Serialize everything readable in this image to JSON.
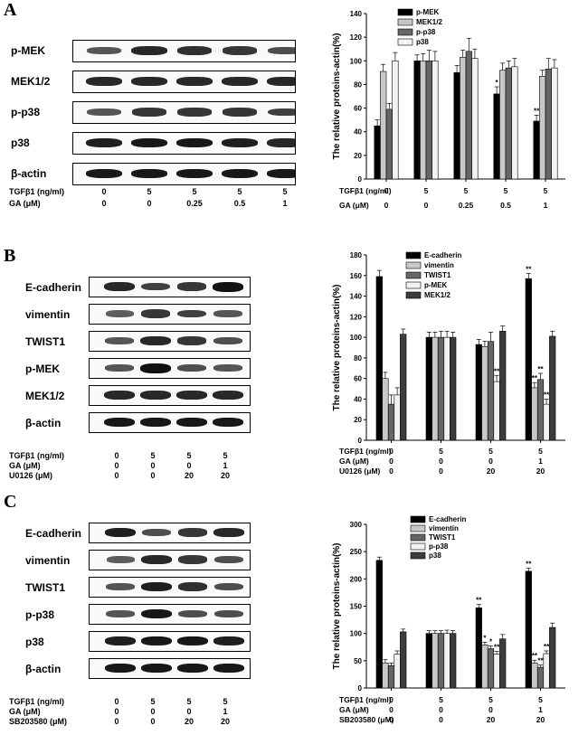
{
  "panels": [
    {
      "letter": "A",
      "blot": {
        "bands": [
          "p-MEK",
          "MEK1/2",
          "p-p38",
          "p38",
          "β-actin"
        ],
        "intensity": [
          [
            0.55,
            0.85,
            0.8,
            0.75,
            0.6
          ],
          [
            0.85,
            0.85,
            0.85,
            0.85,
            0.85
          ],
          [
            0.55,
            0.75,
            0.75,
            0.75,
            0.7
          ],
          [
            0.9,
            0.95,
            0.95,
            0.9,
            0.85
          ],
          [
            0.95,
            0.95,
            0.95,
            0.95,
            0.95
          ]
        ],
        "conditions": [
          {
            "label": "TGFβ1 (ng/ml)",
            "values": [
              "0",
              "5",
              "5",
              "5",
              "5"
            ]
          },
          {
            "label": "GA (μM)",
            "values": [
              "0",
              "0",
              "0.25",
              "0.5",
              "1"
            ]
          }
        ]
      },
      "chart_data": {
        "type": "bar",
        "ylabel": "The relative proteins-actin(%)",
        "ylim": [
          0,
          140
        ],
        "yticks": [
          0,
          20,
          40,
          60,
          80,
          100,
          120,
          140
        ],
        "series": [
          {
            "name": "p-MEK",
            "color": "#000000",
            "values": [
              45,
              100,
              90,
              72,
              49
            ],
            "errors": [
              5,
              5,
              6,
              6,
              5
            ],
            "sig": [
              "",
              "",
              "",
              "*",
              "**"
            ]
          },
          {
            "name": "MEK1/2",
            "color": "#c8c8c8",
            "values": [
              91,
              100,
              103,
              92,
              87
            ],
            "errors": [
              6,
              6,
              6,
              6,
              5
            ],
            "sig": [
              "",
              "",
              "",
              "",
              ""
            ]
          },
          {
            "name": "p-p38",
            "color": "#666666",
            "values": [
              59,
              100,
              108,
              94,
              93
            ],
            "errors": [
              5,
              9,
              11,
              6,
              9
            ],
            "sig": [
              "",
              "",
              "",
              "",
              ""
            ]
          },
          {
            "name": "p38",
            "color": "#f2f2f2",
            "values": [
              100,
              100,
              102,
              95,
              94
            ],
            "errors": [
              7,
              8,
              8,
              7,
              7
            ],
            "sig": [
              "",
              "",
              "",
              "",
              ""
            ]
          }
        ],
        "conditions": [
          {
            "label": "TGFβ1 (ng/ml)",
            "values": [
              "0",
              "5",
              "5",
              "5",
              "5"
            ]
          },
          {
            "label": "GA (μM)",
            "values": [
              "0",
              "0",
              "0.25",
              "0.5",
              "1"
            ]
          }
        ]
      }
    },
    {
      "letter": "B",
      "blot": {
        "bands": [
          "E-cadherin",
          "vimentin",
          "TWIST1",
          "p-MEK",
          "MEK1/2",
          "β-actin"
        ],
        "intensity": [
          [
            0.85,
            0.7,
            0.75,
            1.0
          ],
          [
            0.5,
            0.75,
            0.7,
            0.55
          ],
          [
            0.55,
            0.85,
            0.75,
            0.6
          ],
          [
            0.55,
            1.0,
            0.6,
            0.55
          ],
          [
            0.85,
            0.85,
            0.85,
            0.85
          ],
          [
            0.95,
            0.95,
            0.95,
            0.95
          ]
        ],
        "conditions": [
          {
            "label": "TGFβ1 (ng/ml)",
            "values": [
              "0",
              "5",
              "5",
              "5"
            ]
          },
          {
            "label": "GA (μM)",
            "values": [
              "0",
              "0",
              "0",
              "1"
            ]
          },
          {
            "label": "U0126 (μM)",
            "values": [
              "0",
              "0",
              "20",
              "20"
            ]
          }
        ]
      },
      "chart_data": {
        "type": "bar",
        "ylabel": "The relative proteins-actin(%)",
        "ylim": [
          0,
          180
        ],
        "yticks": [
          0,
          20,
          40,
          60,
          80,
          100,
          120,
          140,
          160,
          180
        ],
        "series": [
          {
            "name": "E-cadherin",
            "color": "#000000",
            "values": [
              159,
              100,
              93,
              157
            ],
            "errors": [
              6,
              5,
              5,
              5
            ],
            "sig": [
              "",
              "",
              "",
              "**"
            ]
          },
          {
            "name": "vimentin",
            "color": "#c8c8c8",
            "values": [
              60,
              100,
              91,
              51
            ],
            "errors": [
              6,
              5,
              5,
              5
            ],
            "sig": [
              "",
              "",
              "",
              "**"
            ]
          },
          {
            "name": "TWIST1",
            "color": "#666666",
            "values": [
              35,
              100,
              96,
              59
            ],
            "errors": [
              9,
              6,
              9,
              6
            ],
            "sig": [
              "",
              "",
              "",
              "**"
            ]
          },
          {
            "name": "p-MEK",
            "color": "#f2f2f2",
            "values": [
              44,
              100,
              57,
              35
            ],
            "errors": [
              7,
              6,
              6,
              5
            ],
            "sig": [
              "",
              "",
              "**",
              "**"
            ]
          },
          {
            "name": "MEK1/2",
            "color": "#3c3c3c",
            "values": [
              103,
              100,
              106,
              101
            ],
            "errors": [
              5,
              5,
              5,
              5
            ],
            "sig": [
              "",
              "",
              "",
              ""
            ]
          }
        ],
        "conditions": [
          {
            "label": "TGFβ1 (ng/ml)",
            "values": [
              "0",
              "5",
              "5",
              "5"
            ]
          },
          {
            "label": "GA (μM)",
            "values": [
              "0",
              "0",
              "0",
              "1"
            ]
          },
          {
            "label": "U0126 (μM)",
            "values": [
              "0",
              "0",
              "20",
              "20"
            ]
          }
        ]
      }
    },
    {
      "letter": "C",
      "blot": {
        "bands": [
          "E-cadherin",
          "vimentin",
          "TWIST1",
          "p-p38",
          "p38",
          "β-actin"
        ],
        "intensity": [
          [
            0.9,
            0.6,
            0.75,
            0.85
          ],
          [
            0.5,
            0.85,
            0.75,
            0.6
          ],
          [
            0.55,
            0.9,
            0.8,
            0.6
          ],
          [
            0.55,
            0.95,
            0.6,
            0.6
          ],
          [
            0.9,
            0.95,
            0.95,
            0.9
          ],
          [
            0.95,
            0.95,
            0.95,
            0.95
          ]
        ],
        "conditions": [
          {
            "label": "TGFβ1 (ng/ml)",
            "values": [
              "0",
              "5",
              "5",
              "5"
            ]
          },
          {
            "label": "GA (μM)",
            "values": [
              "0",
              "0",
              "0",
              "1"
            ]
          },
          {
            "label": "SB203580 (μM)",
            "values": [
              "0",
              "0",
              "20",
              "20"
            ]
          }
        ]
      },
      "chart_data": {
        "type": "bar",
        "ylabel": "The relative proteins-actin(%)",
        "ylim": [
          0,
          300
        ],
        "yticks": [
          0,
          50,
          100,
          150,
          200,
          250,
          300
        ],
        "series": [
          {
            "name": "E-cadherin",
            "color": "#000000",
            "values": [
              234,
              100,
              147,
              214
            ],
            "errors": [
              6,
              5,
              6,
              6
            ],
            "sig": [
              "",
              "",
              "**",
              "**"
            ]
          },
          {
            "name": "vimentin",
            "color": "#c8c8c8",
            "values": [
              46,
              100,
              79,
              46
            ],
            "errors": [
              6,
              5,
              5,
              5
            ],
            "sig": [
              "",
              "",
              "*",
              "**"
            ]
          },
          {
            "name": "TWIST1",
            "color": "#666666",
            "values": [
              41,
              100,
              72,
              38
            ],
            "errors": [
              5,
              5,
              5,
              4
            ],
            "sig": [
              "",
              "",
              "*",
              "**"
            ]
          },
          {
            "name": "p-p38",
            "color": "#f2f2f2",
            "values": [
              62,
              100,
              62,
              63
            ],
            "errors": [
              6,
              6,
              5,
              5
            ],
            "sig": [
              "",
              "",
              "**",
              "**"
            ]
          },
          {
            "name": "p38",
            "color": "#3c3c3c",
            "values": [
              103,
              100,
              90,
              111
            ],
            "errors": [
              5,
              5,
              8,
              8
            ],
            "sig": [
              "",
              "",
              "",
              ""
            ]
          }
        ],
        "conditions": [
          {
            "label": "TGFβ1 (ng/ml)",
            "values": [
              "0",
              "5",
              "5",
              "5"
            ]
          },
          {
            "label": "GA (μM)",
            "values": [
              "0",
              "0",
              "0",
              "1"
            ]
          },
          {
            "label": "SB203580 (μM)",
            "values": [
              "0",
              "0",
              "20",
              "20"
            ]
          }
        ]
      }
    }
  ]
}
